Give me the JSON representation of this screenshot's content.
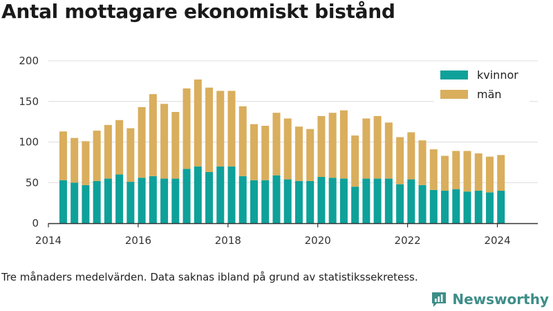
{
  "header": {
    "title": "Antal mottagare ekonomiskt bistånd"
  },
  "footer": {
    "caption": "Tre månaders medelvärden. Data saknas ibland på grund av statistikssekretess.",
    "brand": "Newsworthy"
  },
  "colors": {
    "kvinnor": "#0ea19a",
    "man": "#d9ae5d",
    "grid": "#dcdcdc",
    "axis": "#333333",
    "brand": "#3e8d88"
  },
  "chart_data": {
    "type": "bar",
    "stacked": true,
    "ylim": [
      0,
      200
    ],
    "yticks": [
      0,
      50,
      100,
      150,
      200
    ],
    "xlim": [
      2014.0,
      2024.9
    ],
    "xticks": [
      2014,
      2016,
      2018,
      2020,
      2022,
      2024
    ],
    "grid": true,
    "legend": "top-right",
    "x": [
      2014.33,
      2014.58,
      2014.83,
      2015.08,
      2015.33,
      2015.58,
      2015.83,
      2016.08,
      2016.33,
      2016.58,
      2016.83,
      2017.08,
      2017.33,
      2017.58,
      2017.83,
      2018.08,
      2018.33,
      2018.58,
      2018.83,
      2019.08,
      2019.33,
      2019.58,
      2019.83,
      2020.08,
      2020.33,
      2020.58,
      2020.83,
      2021.08,
      2021.33,
      2021.58,
      2021.83,
      2022.08,
      2022.33,
      2022.58,
      2022.83,
      2023.08,
      2023.33,
      2023.58,
      2023.83,
      2024.08
    ],
    "series": [
      {
        "name": "kvinnor",
        "values": [
          53,
          50,
          47,
          52,
          55,
          60,
          51,
          56,
          58,
          55,
          55,
          67,
          70,
          63,
          70,
          70,
          58,
          53,
          53,
          59,
          54,
          52,
          52,
          57,
          56,
          55,
          45,
          55,
          55,
          55,
          48,
          54,
          47,
          41,
          40,
          42,
          39,
          40,
          38,
          40
        ]
      },
      {
        "name": "män",
        "values": [
          60,
          55,
          54,
          62,
          66,
          67,
          66,
          87,
          101,
          92,
          82,
          99,
          107,
          104,
          93,
          93,
          86,
          69,
          67,
          77,
          75,
          67,
          64,
          75,
          80,
          84,
          63,
          74,
          77,
          69,
          58,
          58,
          55,
          50,
          43,
          47,
          50,
          46,
          44,
          44
        ]
      }
    ]
  }
}
